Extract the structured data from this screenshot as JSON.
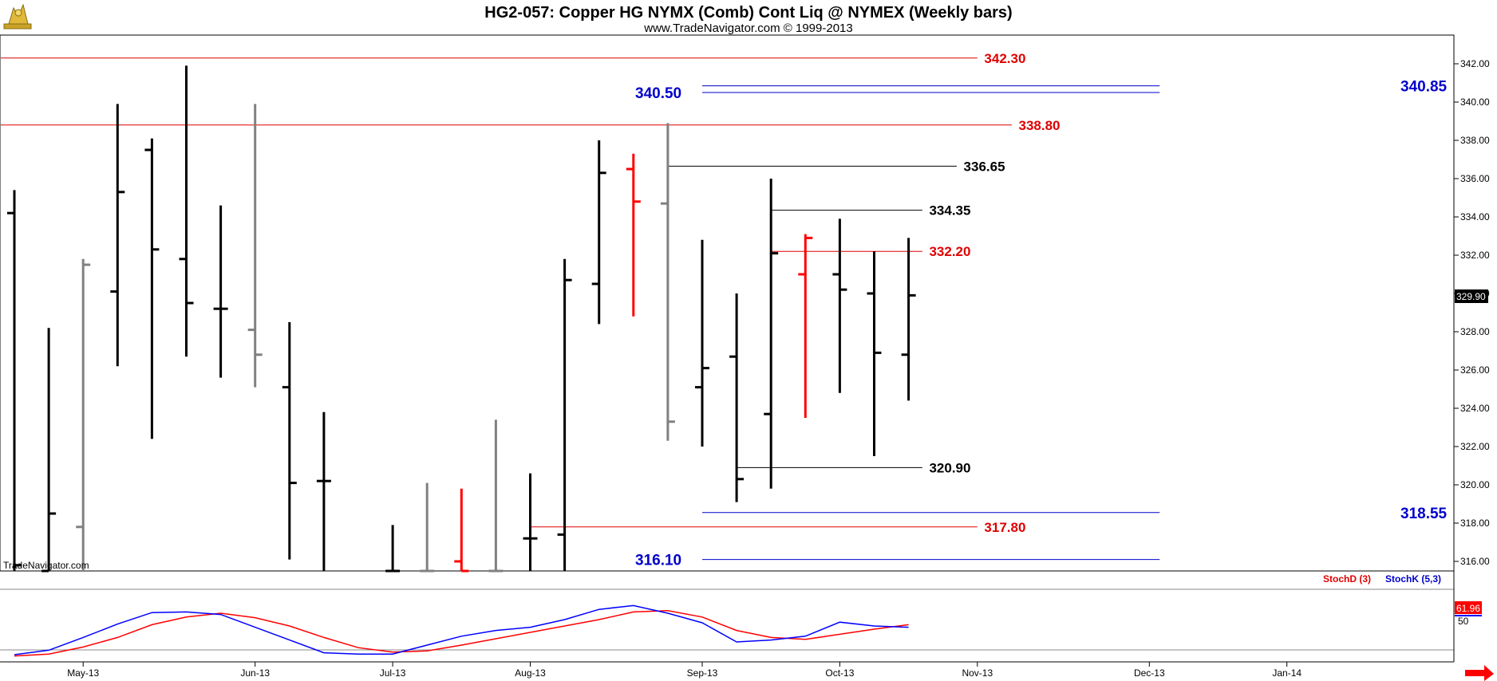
{
  "header": {
    "title": "HG2-057:  Copper HG NYMX (Comb) Cont Liq @ NYMEX  (Weekly bars)",
    "subtitle": "www.TradeNavigator.com © 1999-2013"
  },
  "watermark": "TradeNavigator.com",
  "indicator": {
    "stochd_label": "StochD (3)",
    "stochk_label": "StochK (5,3)",
    "value_label": "61.96",
    "level_label": "50"
  },
  "colors": {
    "up_bar": "#000000",
    "down_bar": "#ff0000",
    "neutral_bar": "#808080",
    "resistance_red": "#e00000",
    "fib_blue": "#0000cc",
    "stochd": "#ff0000",
    "stochk": "#0000ff",
    "arrow": "#ff0000"
  },
  "chart_data": {
    "type": "ohlc",
    "ylim": [
      315.5,
      343.5
    ],
    "y_ticks": [
      "342.00",
      "340.00",
      "338.00",
      "336.00",
      "334.00",
      "332.00",
      "330.00",
      "328.00",
      "326.00",
      "324.00",
      "322.00",
      "320.00",
      "318.00",
      "316.00"
    ],
    "y_tick_values": [
      342,
      340,
      338,
      336,
      334,
      332,
      330,
      328,
      326,
      324,
      322,
      320,
      318,
      316
    ],
    "x_labels": [
      "May-13",
      "Jun-13",
      "Jul-13",
      "Aug-13",
      "Sep-13",
      "Oct-13",
      "Nov-13",
      "Dec-13",
      "Jan-14"
    ],
    "x_label_weeks": [
      2,
      7,
      11,
      15,
      20,
      24,
      28,
      33,
      37
    ],
    "last_price_label": "329.90",
    "last_price": 329.9,
    "bars": [
      {
        "w": 0,
        "o": 334.2,
        "h": 335.4,
        "l": 315.5,
        "c": 315.8,
        "color": "up"
      },
      {
        "w": 1,
        "o": 315.5,
        "h": 328.2,
        "l": 315.5,
        "c": 318.5,
        "color": "up"
      },
      {
        "w": 2,
        "o": 317.8,
        "h": 331.8,
        "l": 315.5,
        "c": 331.5,
        "color": "neutral"
      },
      {
        "w": 3,
        "o": 330.1,
        "h": 339.9,
        "l": 326.2,
        "c": 335.3,
        "color": "up"
      },
      {
        "w": 4,
        "o": 337.5,
        "h": 338.1,
        "l": 322.4,
        "c": 332.3,
        "color": "up"
      },
      {
        "w": 5,
        "o": 331.8,
        "h": 341.9,
        "l": 326.7,
        "c": 329.5,
        "color": "up"
      },
      {
        "w": 6,
        "o": 329.2,
        "h": 334.6,
        "l": 325.6,
        "c": 329.2,
        "color": "up"
      },
      {
        "w": 7,
        "o": 328.1,
        "h": 339.9,
        "l": 325.1,
        "c": 326.8,
        "color": "neutral"
      },
      {
        "w": 8,
        "o": 325.1,
        "h": 328.5,
        "l": 316.1,
        "c": 320.1,
        "color": "up"
      },
      {
        "w": 9,
        "o": 320.2,
        "h": 323.8,
        "l": 315.5,
        "c": 320.2,
        "color": "up"
      },
      {
        "w": 11,
        "o": 315.5,
        "h": 317.9,
        "l": 315.5,
        "c": 315.5,
        "color": "up"
      },
      {
        "w": 12,
        "o": 315.5,
        "h": 320.1,
        "l": 315.5,
        "c": 315.5,
        "color": "neutral"
      },
      {
        "w": 13,
        "o": 316.0,
        "h": 319.8,
        "l": 315.5,
        "c": 315.5,
        "color": "down"
      },
      {
        "w": 14,
        "o": 315.5,
        "h": 323.4,
        "l": 315.5,
        "c": 315.5,
        "color": "neutral"
      },
      {
        "w": 15,
        "o": 317.2,
        "h": 320.6,
        "l": 315.5,
        "c": 317.2,
        "color": "up"
      },
      {
        "w": 16,
        "o": 317.4,
        "h": 331.8,
        "l": 315.5,
        "c": 330.7,
        "color": "up"
      },
      {
        "w": 17,
        "o": 330.5,
        "h": 338.0,
        "l": 328.4,
        "c": 336.3,
        "color": "up"
      },
      {
        "w": 18,
        "o": 336.5,
        "h": 337.3,
        "l": 328.8,
        "c": 334.8,
        "color": "down"
      },
      {
        "w": 19,
        "o": 334.7,
        "h": 338.9,
        "l": 322.3,
        "c": 323.3,
        "color": "neutral"
      },
      {
        "w": 20,
        "o": 325.1,
        "h": 332.8,
        "l": 322.0,
        "c": 326.1,
        "color": "up"
      },
      {
        "w": 21,
        "o": 326.7,
        "h": 330.0,
        "l": 319.1,
        "c": 320.3,
        "color": "up"
      },
      {
        "w": 22,
        "o": 323.7,
        "h": 336.0,
        "l": 319.8,
        "c": 332.1,
        "color": "up"
      },
      {
        "w": 23,
        "o": 331.0,
        "h": 333.1,
        "l": 323.5,
        "c": 332.9,
        "color": "down"
      },
      {
        "w": 24,
        "o": 331.0,
        "h": 333.9,
        "l": 324.8,
        "c": 330.2,
        "color": "up"
      },
      {
        "w": 25,
        "o": 330.0,
        "h": 332.2,
        "l": 321.5,
        "c": 326.9,
        "color": "up"
      },
      {
        "w": 26,
        "o": 326.8,
        "h": 332.9,
        "l": 324.4,
        "c": 329.9,
        "color": "up"
      }
    ],
    "levels": [
      {
        "value": 342.3,
        "label": "342.30",
        "color": "red",
        "x_start_week": -1,
        "x_end_week": 28.0,
        "label_week": 28.2
      },
      {
        "value": 338.8,
        "label": "338.80",
        "color": "red",
        "x_start_week": -1,
        "x_end_week": 29.0,
        "label_week": 29.2
      },
      {
        "value": 336.65,
        "label": "336.65",
        "color": "black",
        "x_start_week": 19,
        "x_end_week": 27.4,
        "label_week": 27.6
      },
      {
        "value": 334.35,
        "label": "334.35",
        "color": "black",
        "x_start_week": 22,
        "x_end_week": 26.4,
        "label_week": 26.6
      },
      {
        "value": 332.2,
        "label": "332.20",
        "color": "red",
        "x_start_week": 22,
        "x_end_week": 26.4,
        "label_week": 26.6
      },
      {
        "value": 320.9,
        "label": "320.90",
        "color": "black",
        "x_start_week": 21,
        "x_end_week": 26.4,
        "label_week": 26.6
      },
      {
        "value": 317.8,
        "label": "317.80",
        "color": "red",
        "x_start_week": 15,
        "x_end_week": 28.0,
        "label_week": 28.2
      }
    ],
    "fib_levels": [
      {
        "value": 340.85,
        "label": "340.85"
      },
      {
        "value": 340.5,
        "label": "340.50"
      },
      {
        "value": 318.55,
        "label": "318.55"
      },
      {
        "value": 316.1,
        "label": "316.10"
      }
    ],
    "stochastic": {
      "ylim": [
        0,
        100
      ],
      "weeks": [
        0,
        1,
        2,
        3,
        4,
        5,
        6,
        7,
        8,
        9,
        10,
        11,
        12,
        13,
        14,
        15,
        16,
        17,
        18,
        19,
        20,
        21,
        22,
        23,
        24,
        25,
        26
      ],
      "stochk": [
        5,
        12,
        32,
        53,
        71,
        72,
        68,
        48,
        28,
        8,
        6,
        6,
        20,
        34,
        43,
        48,
        60,
        76,
        82,
        70,
        55,
        25,
        28,
        34,
        56,
        50,
        48
      ],
      "stochd": [
        3,
        6,
        17,
        32,
        52,
        64,
        70,
        63,
        50,
        32,
        16,
        9,
        11,
        20,
        30,
        40,
        50,
        60,
        72,
        74,
        64,
        43,
        32,
        29,
        37,
        45,
        52
      ]
    }
  }
}
